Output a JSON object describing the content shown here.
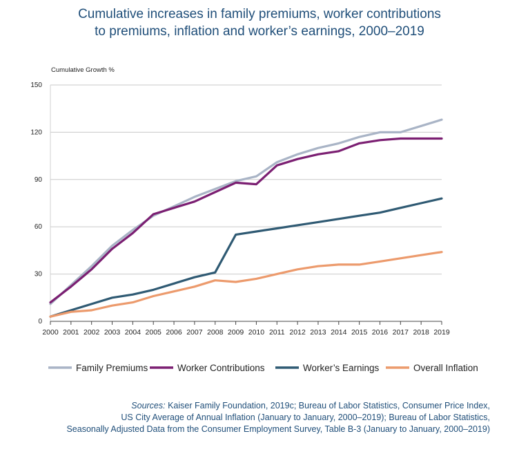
{
  "chart_data": {
    "type": "line",
    "title": "Cumulative increases in family premiums, worker contributions to premiums, inflation and worker’s earnings, 2000–2019",
    "title_lines": [
      "Cumulative increases in family premiums, worker contributions",
      "to premiums, inflation and worker’s earnings, 2000–2019"
    ],
    "ylabel": "Cumulative Growth %",
    "xlabel": "",
    "ylim": [
      0,
      150
    ],
    "yticks": [
      0,
      30,
      60,
      90,
      120,
      150
    ],
    "grid": true,
    "legend_position": "bottom",
    "x": [
      "2000",
      "2001",
      "2002",
      "2003",
      "2004",
      "2005",
      "2006",
      "2007",
      "2008",
      "2009",
      "2010",
      "2011",
      "2012",
      "2013",
      "2014",
      "2015",
      "2016",
      "2017",
      "2018",
      "2019"
    ],
    "series": [
      {
        "name": "Family Premiums",
        "color": "#a9b4c6",
        "values": [
          11,
          23,
          35,
          48,
          58,
          67,
          73,
          79,
          84,
          89,
          92,
          101,
          106,
          110,
          113,
          117,
          120,
          120,
          124,
          128
        ]
      },
      {
        "name": "Worker Contributions",
        "color": "#7b1f72",
        "values": [
          12,
          22,
          33,
          46,
          56,
          68,
          72,
          76,
          82,
          88,
          87,
          99,
          103,
          106,
          108,
          113,
          115,
          116,
          116,
          116
        ]
      },
      {
        "name": "Worker’s Earnings",
        "color": "#2f5a73",
        "values": [
          3,
          7,
          11,
          15,
          17,
          20,
          24,
          28,
          31,
          55,
          57,
          59,
          61,
          63,
          65,
          67,
          69,
          72,
          75,
          78
        ]
      },
      {
        "name": "Overall Inflation",
        "color": "#ec9a6c",
        "values": [
          3,
          6,
          7,
          10,
          12,
          16,
          19,
          22,
          26,
          25,
          27,
          30,
          33,
          35,
          36,
          36,
          38,
          40,
          42,
          44
        ]
      }
    ]
  },
  "sources": {
    "label": "Sources:",
    "line1": " Kaiser Family Foundation, 2019c; Bureau of Labor Statistics, Consumer Price Index,",
    "line2": "US City Average of Annual Inflation (January to January, 2000–2019); Bureau of Labor Statistics,",
    "line3": "Seasonally Adjusted Data from the Consumer Employment Survey, Table B-3 (January to January, 2000–2019)"
  }
}
